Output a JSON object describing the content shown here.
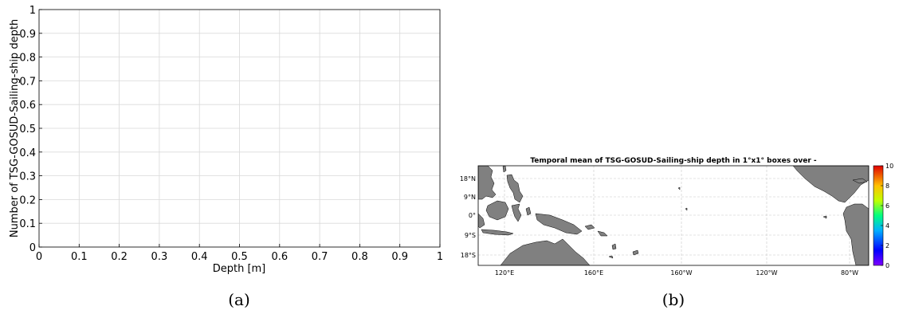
{
  "captions": {
    "a": "(a)",
    "b": "(b)"
  },
  "chart_data": [
    {
      "type": "line",
      "title": "",
      "xlabel": "Depth [m]",
      "ylabel": "Number of TSG-GOSUD-Sailing-ship depth",
      "xlim": [
        0,
        1
      ],
      "ylim": [
        0,
        1
      ],
      "xticks": [
        "0",
        "0.1",
        "0.2",
        "0.3",
        "0.4",
        "0.5",
        "0.6",
        "0.7",
        "0.8",
        "0.9",
        "1"
      ],
      "yticks": [
        "0",
        "0.1",
        "0.2",
        "0.3",
        "0.4",
        "0.5",
        "0.6",
        "0.7",
        "0.8",
        "0.9",
        "1"
      ],
      "series": [],
      "grid": true
    },
    {
      "type": "heatmap",
      "title": "Temporal mean of TSG-GOSUD-Sailing-ship depth in 1°x1° boxes over -",
      "lon_ticks": [
        "120°E",
        "160°E",
        "160°W",
        "120°W",
        "80°W"
      ],
      "lat_ticks": [
        "18°N",
        "9°N",
        "0°",
        "9°S",
        "18°S"
      ],
      "colorbar_ticks": [
        "0",
        "2",
        "4",
        "6",
        "8",
        "10"
      ],
      "clim": [
        0,
        10
      ],
      "land_color": "#808080",
      "grid": true
    }
  ]
}
